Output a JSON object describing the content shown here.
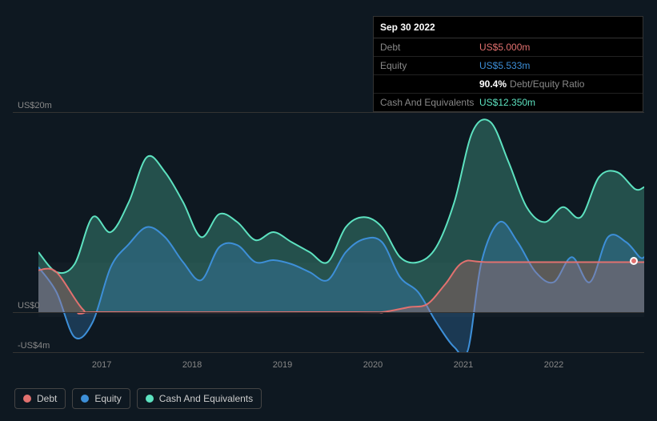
{
  "tooltip": {
    "date": "Sep 30 2022",
    "rows": [
      {
        "label": "Debt",
        "value": "US$5.000m",
        "color": "#e2716f"
      },
      {
        "label": "Equity",
        "value": "US$5.533m",
        "color": "#3d8fd8"
      },
      {
        "label": "",
        "pct": "90.4%",
        "ratio_label": "Debt/Equity Ratio"
      },
      {
        "label": "Cash And Equivalents",
        "value": "US$12.350m",
        "color": "#5de2c0"
      }
    ]
  },
  "chart": {
    "y_min": -4,
    "y_max": 20,
    "y_ticks": [
      {
        "v": 20,
        "label": "US$20m"
      },
      {
        "v": 0,
        "label": "US$0"
      },
      {
        "v": -4,
        "label": "-US$4m"
      }
    ],
    "x_min": 2016.3,
    "x_max": 2023.0,
    "x_ticks": [
      2017,
      2018,
      2019,
      2020,
      2021,
      2022
    ],
    "plot_bg_y_from": 5,
    "plot_bg_y_to": -0.5,
    "colors": {
      "debt": "#e2716f",
      "equity": "#3d8fd8",
      "cash": "#5de2c0",
      "grid": "#333333",
      "bg": "#0e1821"
    },
    "series": {
      "debt": [
        [
          2016.3,
          4.2
        ],
        [
          2016.5,
          4.0
        ],
        [
          2016.8,
          0.2
        ],
        [
          2017.0,
          0.0
        ],
        [
          2019.8,
          0.0
        ],
        [
          2020.1,
          0.0
        ],
        [
          2020.4,
          0.5
        ],
        [
          2020.6,
          0.8
        ],
        [
          2020.8,
          2.8
        ],
        [
          2021.0,
          5.0
        ],
        [
          2021.3,
          5.0
        ],
        [
          2022.5,
          5.0
        ],
        [
          2022.9,
          5.0
        ],
        [
          2023.0,
          5.0
        ]
      ],
      "equity": [
        [
          2016.3,
          4.5
        ],
        [
          2016.5,
          2.0
        ],
        [
          2016.7,
          -2.5
        ],
        [
          2016.9,
          -1.0
        ],
        [
          2017.1,
          4.5
        ],
        [
          2017.3,
          6.8
        ],
        [
          2017.5,
          8.5
        ],
        [
          2017.7,
          7.5
        ],
        [
          2017.9,
          5.0
        ],
        [
          2018.1,
          3.2
        ],
        [
          2018.3,
          6.5
        ],
        [
          2018.5,
          6.7
        ],
        [
          2018.7,
          5.0
        ],
        [
          2018.9,
          5.2
        ],
        [
          2019.1,
          4.8
        ],
        [
          2019.3,
          4.0
        ],
        [
          2019.5,
          3.2
        ],
        [
          2019.7,
          6.0
        ],
        [
          2019.9,
          7.3
        ],
        [
          2020.1,
          7.0
        ],
        [
          2020.3,
          3.5
        ],
        [
          2020.5,
          2.0
        ],
        [
          2020.7,
          -1.0
        ],
        [
          2020.9,
          -3.5
        ],
        [
          2021.05,
          -3.8
        ],
        [
          2021.2,
          5.0
        ],
        [
          2021.4,
          9.0
        ],
        [
          2021.6,
          7.0
        ],
        [
          2021.8,
          4.0
        ],
        [
          2022.0,
          3.0
        ],
        [
          2022.2,
          5.5
        ],
        [
          2022.4,
          3.0
        ],
        [
          2022.6,
          7.5
        ],
        [
          2022.8,
          7.0
        ],
        [
          2022.95,
          5.5
        ],
        [
          2023.0,
          5.5
        ]
      ],
      "cash": [
        [
          2016.3,
          6.0
        ],
        [
          2016.5,
          4.0
        ],
        [
          2016.7,
          4.8
        ],
        [
          2016.9,
          9.5
        ],
        [
          2017.1,
          8.0
        ],
        [
          2017.3,
          11.0
        ],
        [
          2017.5,
          15.5
        ],
        [
          2017.7,
          14.0
        ],
        [
          2017.9,
          11.0
        ],
        [
          2018.1,
          7.5
        ],
        [
          2018.3,
          9.8
        ],
        [
          2018.5,
          9.0
        ],
        [
          2018.7,
          7.2
        ],
        [
          2018.9,
          8.0
        ],
        [
          2019.1,
          7.0
        ],
        [
          2019.3,
          6.0
        ],
        [
          2019.5,
          5.0
        ],
        [
          2019.7,
          8.5
        ],
        [
          2019.9,
          9.5
        ],
        [
          2020.1,
          8.5
        ],
        [
          2020.3,
          5.5
        ],
        [
          2020.5,
          5.0
        ],
        [
          2020.7,
          6.5
        ],
        [
          2020.9,
          11.0
        ],
        [
          2021.1,
          18.0
        ],
        [
          2021.3,
          19.0
        ],
        [
          2021.5,
          15.0
        ],
        [
          2021.7,
          10.5
        ],
        [
          2021.9,
          9.0
        ],
        [
          2022.1,
          10.5
        ],
        [
          2022.3,
          9.5
        ],
        [
          2022.5,
          13.5
        ],
        [
          2022.7,
          14.0
        ],
        [
          2022.9,
          12.3
        ],
        [
          2023.0,
          12.5
        ]
      ]
    },
    "fill_opacity": 0.28,
    "line_width": 2
  },
  "legend": [
    {
      "label": "Debt",
      "color": "#e2716f",
      "key": "debt"
    },
    {
      "label": "Equity",
      "color": "#3d8fd8",
      "key": "equity"
    },
    {
      "label": "Cash And Equivalents",
      "color": "#5de2c0",
      "key": "cash"
    }
  ]
}
